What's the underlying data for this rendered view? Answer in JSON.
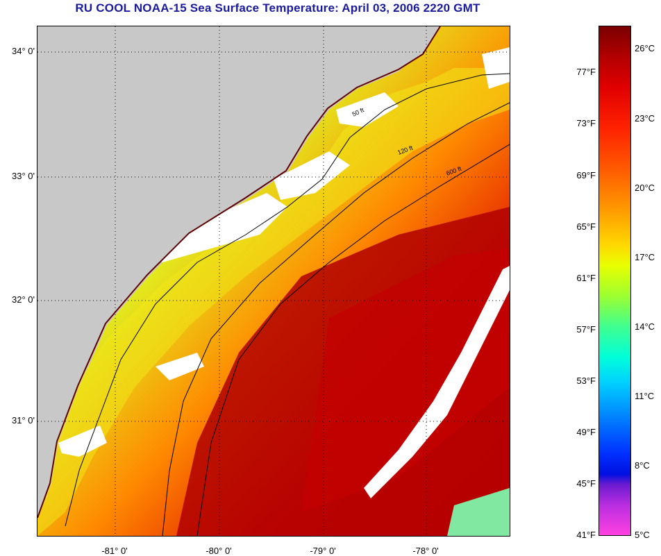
{
  "title": "RU COOL  NOAA-15  Sea Surface Temperature:  April 03, 2006 2220 GMT",
  "map": {
    "lat_labels": [
      "34° 0'",
      "33° 0'",
      "32° 0'",
      "31° 0'"
    ],
    "lon_labels": [
      "-81° 0'",
      "-80° 0'",
      "-79° 0'",
      "-78° 0'"
    ],
    "contour_labels": [
      "50 ft",
      "120 ft",
      "600 ft"
    ],
    "colors": {
      "land": "#c8c8c8",
      "cloud": "#ffffff",
      "warm": "#c00000",
      "cool": "#40e8a0"
    }
  },
  "colorbar": {
    "fahrenheit": [
      "77°F",
      "73°F",
      "69°F",
      "65°F",
      "61°F",
      "57°F",
      "53°F",
      "49°F",
      "45°F",
      "41°F"
    ],
    "celsius": [
      "26°C",
      "23°C",
      "20°C",
      "17°C",
      "14°C",
      "11°C",
      "8°C",
      "5°C"
    ]
  }
}
